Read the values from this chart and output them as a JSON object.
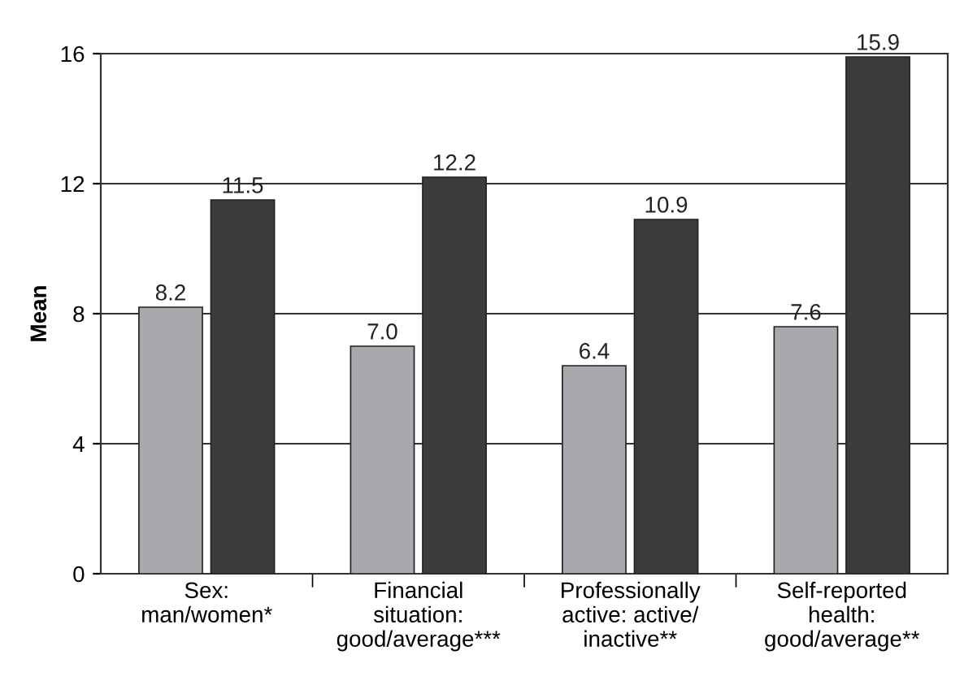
{
  "chart_data": {
    "type": "bar",
    "ylabel": "Mean",
    "categories": [
      "Sex:\nman/women*",
      "Financial\nsituation:\ngood/average***",
      "Professionally\nactive: active/\ninactive**",
      "Self-reported\nhealth:\ngood/average**"
    ],
    "series": [
      {
        "color": "#a7a9ac",
        "values": [
          8.2,
          7.0,
          6.4,
          7.6
        ],
        "value_labels": [
          "8.2",
          "7.0",
          "6.4",
          "7.6"
        ]
      },
      {
        "color": "#3c3c3e",
        "values": [
          11.5,
          12.2,
          10.9,
          15.9
        ],
        "value_labels": [
          "11.5",
          "12.2",
          "10.9",
          "15.9"
        ]
      }
    ],
    "ylim": [
      0,
      16
    ],
    "yticks": [
      0,
      4,
      8,
      12,
      16
    ],
    "grid": "y",
    "legend": false
  }
}
